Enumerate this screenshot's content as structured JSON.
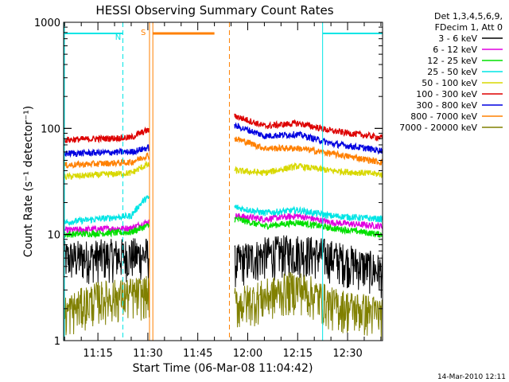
{
  "chart_data": {
    "type": "line",
    "title": "HESSI Observing Summary Count Rates",
    "xlabel": "Start Time (06-Mar-08 11:04:42)",
    "ylabel": "Count Rate (s⁻¹ detector⁻¹)",
    "y_scale": "log",
    "ylim": [
      1,
      1000
    ],
    "xlim": [
      "11:04:42",
      "12:40:30"
    ],
    "x_ticks": [
      "11:15",
      "11:30",
      "11:45",
      "12:00",
      "12:15",
      "12:30"
    ],
    "y_ticks": [
      "1",
      "10",
      "100",
      "1000"
    ],
    "legend_header": [
      "Det 1,3,4,5,6,9,",
      "FDecim 1, Att 0"
    ],
    "legend_position": "right",
    "footer_date": "14-Mar-2010 12:11",
    "gaps": [
      [
        "11:30:30",
        "11:56:00"
      ]
    ],
    "series": [
      {
        "name": "3 - 6 keV",
        "color": "#000000",
        "points": [
          [
            "11:04:42",
            6
          ],
          [
            "11:29:30",
            6.5
          ],
          [
            "11:56:30",
            5.5
          ],
          [
            "12:05",
            6.5
          ],
          [
            "12:15",
            7
          ],
          [
            "12:22",
            6.5
          ],
          [
            "12:40",
            4.5
          ]
        ]
      },
      {
        "name": "6 - 12 keV",
        "color": "#e000e0",
        "points": [
          [
            "11:04:42",
            11
          ],
          [
            "11:25",
            11.5
          ],
          [
            "11:29:30",
            13
          ],
          [
            "11:56:30",
            15
          ],
          [
            "12:05",
            14
          ],
          [
            "12:15",
            15
          ],
          [
            "12:25",
            13
          ],
          [
            "12:40",
            12
          ]
        ]
      },
      {
        "name": "12 - 25 keV",
        "color": "#00e000",
        "points": [
          [
            "11:04:42",
            10
          ],
          [
            "11:25",
            10.5
          ],
          [
            "11:29:30",
            12
          ],
          [
            "11:56:30",
            14
          ],
          [
            "12:05",
            12
          ],
          [
            "12:15",
            13
          ],
          [
            "12:25",
            11.5
          ],
          [
            "12:40",
            10
          ]
        ]
      },
      {
        "name": "25 - 50 keV",
        "color": "#00e5e5",
        "points": [
          [
            "11:04:42",
            13
          ],
          [
            "11:25",
            15
          ],
          [
            "11:29:30",
            22
          ],
          [
            "11:56:30",
            18
          ],
          [
            "12:05",
            16
          ],
          [
            "12:15",
            17
          ],
          [
            "12:25",
            15
          ],
          [
            "12:40",
            14
          ]
        ]
      },
      {
        "name": "50 - 100 keV",
        "color": "#d8d800",
        "points": [
          [
            "11:04:42",
            35
          ],
          [
            "11:25",
            38
          ],
          [
            "11:29:30",
            45
          ],
          [
            "11:56:30",
            40
          ],
          [
            "12:05",
            38
          ],
          [
            "12:15",
            44
          ],
          [
            "12:25",
            40
          ],
          [
            "12:40",
            37
          ]
        ]
      },
      {
        "name": "100 - 300 keV",
        "color": "#dd0000",
        "points": [
          [
            "11:04:42",
            78
          ],
          [
            "11:25",
            82
          ],
          [
            "11:29:30",
            95
          ],
          [
            "11:56:30",
            130
          ],
          [
            "12:05",
            105
          ],
          [
            "12:15",
            112
          ],
          [
            "12:25",
            95
          ],
          [
            "12:40",
            82
          ]
        ]
      },
      {
        "name": "300 - 800 keV",
        "color": "#0000e0",
        "points": [
          [
            "11:04:42",
            58
          ],
          [
            "11:25",
            60
          ],
          [
            "11:29:30",
            65
          ],
          [
            "11:56:30",
            105
          ],
          [
            "12:05",
            85
          ],
          [
            "12:15",
            88
          ],
          [
            "12:25",
            72
          ],
          [
            "12:40",
            62
          ]
        ]
      },
      {
        "name": "800 - 7000 keV",
        "color": "#ff8000",
        "points": [
          [
            "11:04:42",
            45
          ],
          [
            "11:25",
            48
          ],
          [
            "11:29:30",
            55
          ],
          [
            "11:56:30",
            80
          ],
          [
            "12:05",
            65
          ],
          [
            "12:15",
            65
          ],
          [
            "12:25",
            58
          ],
          [
            "12:40",
            48
          ]
        ]
      },
      {
        "name": "7000 - 20000 keV",
        "color": "#808000",
        "points": [
          [
            "11:04:42",
            1.8
          ],
          [
            "11:15",
            2.5
          ],
          [
            "11:29:30",
            2.8
          ],
          [
            "11:56:30",
            2.2
          ],
          [
            "12:05",
            2.6
          ],
          [
            "12:15",
            3.2
          ],
          [
            "12:25",
            2.2
          ],
          [
            "12:40",
            1.8
          ]
        ]
      }
    ],
    "flags": [
      {
        "label": "N",
        "color": "#00e5e5",
        "spans": [
          [
            "11:04:42",
            "11:22:30"
          ],
          [
            "12:22:30",
            "12:40:30"
          ]
        ],
        "dashed_lines": [
          "11:22:30",
          "12:40:30"
        ],
        "solid_lines": [
          "12:22:30"
        ]
      },
      {
        "label": "S",
        "color": "#ff8000",
        "spans": [
          [
            "11:31:30",
            "11:50:00"
          ]
        ],
        "dashed_lines": [
          "11:54:30"
        ],
        "solid_lines": [
          "11:30:30",
          "11:31:30"
        ]
      }
    ]
  }
}
